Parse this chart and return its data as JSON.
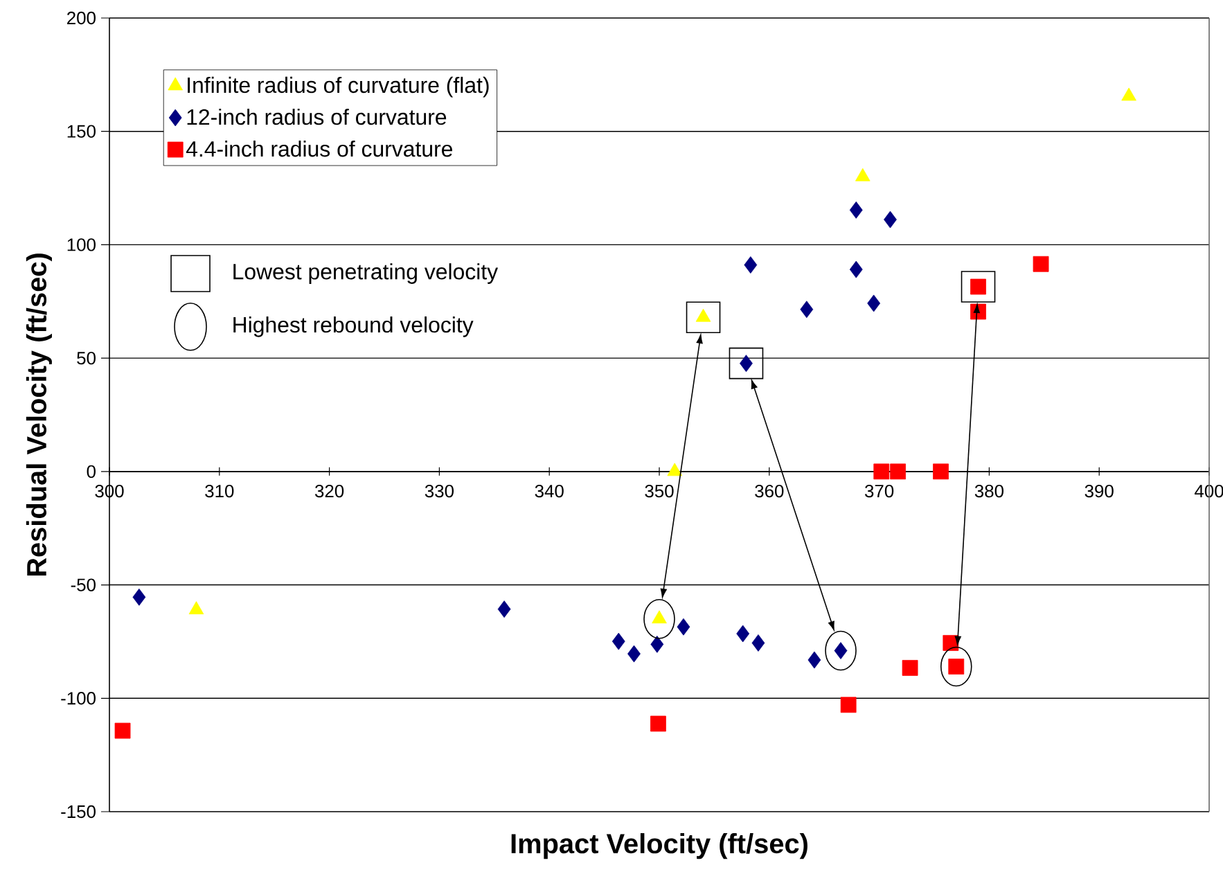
{
  "chart_data": {
    "type": "scatter",
    "xlabel": "Impact Velocity (ft/sec)",
    "ylabel": "Residual Velocity (ft/sec)",
    "xlim": [
      300,
      400
    ],
    "xticks": [
      300,
      310,
      320,
      330,
      340,
      350,
      360,
      370,
      380,
      390,
      400
    ],
    "ylim": [
      -150,
      200
    ],
    "yticks": [
      -150,
      -100,
      -50,
      0,
      50,
      100,
      150,
      200
    ],
    "grid": "y",
    "legend": "top left",
    "annotations": [
      "Lowest penetrating velocity",
      "Highest rebound velocity"
    ],
    "series": [
      {
        "name": "Infinite radius of curvature (flat)",
        "color": "#ffff00",
        "marker": "triangle",
        "x": [
          307.9,
          350.0,
          351.4,
          354.0,
          368.5,
          392.7
        ],
        "values": [
          -61,
          -65,
          0,
          68,
          130,
          165.5
        ]
      },
      {
        "name": "12-inch radius of curvature",
        "color": "#000080",
        "marker": "diamond",
        "x": [
          302.7,
          335.9,
          346.3,
          347.7,
          349.8,
          352.2,
          357.6,
          359.0,
          364.1,
          366.5,
          357.9,
          358.3,
          363.4,
          367.9,
          369.5,
          367.9,
          371.0
        ],
        "values": [
          -55.4,
          -60.7,
          -74.9,
          -80.4,
          -76.2,
          -68.5,
          -71.5,
          -75.6,
          -83.1,
          -79.0,
          47.7,
          91.1,
          71.5,
          89.1,
          74.2,
          115.3,
          111.1
        ]
      },
      {
        "name": "4.4-inch radius of curvature",
        "color": "#ff0000",
        "marker": "square",
        "x": [
          301.2,
          349.9,
          367.2,
          372.8,
          376.5,
          377.0,
          370.2,
          371.7,
          375.6,
          379.0,
          379.0,
          384.7
        ],
        "values": [
          -114.3,
          -111.2,
          -102.9,
          -86.6,
          -75.6,
          -86.0,
          0,
          0,
          0,
          81.5,
          70.5,
          91.5
        ]
      }
    ]
  }
}
